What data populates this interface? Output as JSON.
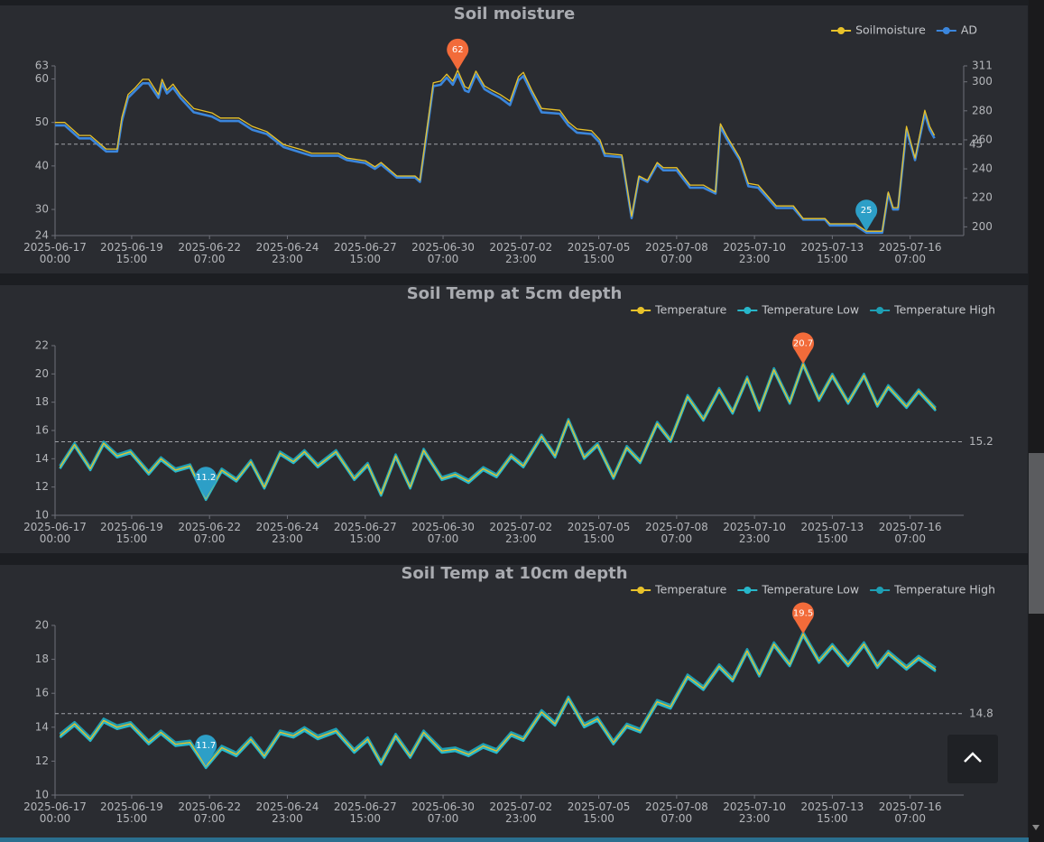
{
  "chart_data": [
    {
      "type": "line",
      "title": "Soil moisture",
      "legend": "top-right",
      "max_color": "#f26b3a",
      "min_color": "#2d9fc7",
      "x": [
        "2025-06-17 00:00",
        "2025-06-17 08:00",
        "2025-06-17 20:00",
        "2025-06-18 05:00",
        "2025-06-18 18:00",
        "2025-06-19 03:00",
        "2025-06-19 07:00",
        "2025-06-19 12:00",
        "2025-06-19 18:00",
        "2025-06-20 00:00",
        "2025-06-20 05:00",
        "2025-06-20 13:00",
        "2025-06-20 16:00",
        "2025-06-20 20:00",
        "2025-06-21 01:00",
        "2025-06-21 07:00",
        "2025-06-21 18:00",
        "2025-06-22 09:00",
        "2025-06-22 16:00",
        "2025-06-23 07:00",
        "2025-06-23 18:00",
        "2025-06-24 06:00",
        "2025-06-24 20:00",
        "2025-06-25 11:00",
        "2025-06-25 19:00",
        "2025-06-26 17:00",
        "2025-06-27 00:00",
        "2025-06-27 15:00",
        "2025-06-27 23:00",
        "2025-06-28 04:00",
        "2025-06-28 17:00",
        "2025-06-29 08:00",
        "2025-06-29 12:00",
        "2025-06-29 17:00",
        "2025-06-29 23:00",
        "2025-06-30 05:00",
        "2025-06-30 10:00",
        "2025-06-30 15:00",
        "2025-06-30 19:00",
        "2025-07-01 01:00",
        "2025-07-01 04:00",
        "2025-07-01 10:00",
        "2025-07-01 17:00",
        "2025-07-01 23:00",
        "2025-07-02 06:00",
        "2025-07-02 14:00",
        "2025-07-02 21:00",
        "2025-07-03 01:00",
        "2025-07-03 08:00",
        "2025-07-03 16:00",
        "2025-07-04 07:00",
        "2025-07-04 14:00",
        "2025-07-04 21:00",
        "2025-07-05 09:00",
        "2025-07-05 16:00",
        "2025-07-05 20:00",
        "2025-07-06 10:00",
        "2025-07-06 18:00",
        "2025-07-07 00:00",
        "2025-07-07 07:00",
        "2025-07-07 15:00",
        "2025-07-07 20:00",
        "2025-07-08 07:00",
        "2025-07-08 18:00",
        "2025-07-09 05:00",
        "2025-07-09 15:00",
        "2025-07-09 19:00",
        "2025-07-10 00:00",
        "2025-07-10 11:00",
        "2025-07-10 18:00",
        "2025-07-11 02:00",
        "2025-07-11 17:00",
        "2025-07-12 07:00",
        "2025-07-12 15:00",
        "2025-07-13 09:00",
        "2025-07-13 13:00",
        "2025-07-14 10:00",
        "2025-07-14 19:00",
        "2025-07-15 08:00",
        "2025-07-15 13:00",
        "2025-07-15 17:00",
        "2025-07-15 21:00",
        "2025-07-16 04:00",
        "2025-07-16 11:00",
        "2025-07-16 19:00",
        "2025-07-16 23:00",
        "2025-07-17 03:00"
      ],
      "series": [
        {
          "name": "Soilmoisture",
          "color": "#e8c22a",
          "values": [
            50,
            50,
            47.0,
            47.0,
            43.9,
            43.9,
            51.2,
            56.4,
            58.0,
            59.9,
            59.9,
            56.4,
            59.9,
            57.4,
            58.8,
            56.4,
            53.2,
            52.2,
            51.0,
            51.0,
            49.1,
            47.9,
            44.9,
            43.7,
            42.9,
            42.9,
            41.8,
            41.2,
            39.8,
            40.8,
            37.7,
            37.7,
            36.7,
            47.0,
            59.1,
            59.5,
            61.1,
            59.5,
            62,
            58.2,
            57.8,
            61.8,
            58.4,
            57.4,
            56.4,
            54.9,
            60.5,
            61.5,
            57.4,
            53.2,
            52.8,
            50.1,
            48.5,
            48.1,
            46.0,
            42.9,
            42.5,
            28.4,
            37.7,
            36.7,
            40.8,
            39.6,
            39.6,
            35.6,
            35.6,
            34.0,
            49.7,
            47.0,
            41.8,
            36.0,
            35.6,
            30.8,
            30.8,
            27.9,
            27.9,
            26.7,
            26.7,
            25,
            25,
            34.0,
            30.4,
            30.4,
            49.1,
            41.8,
            52.8,
            49.1,
            47.0
          ]
        },
        {
          "name": "AD",
          "color": "#3b86dc",
          "axis": "y2",
          "values": [
            270,
            270,
            261,
            261,
            252,
            252,
            273,
            289,
            294,
            299,
            299,
            289,
            299,
            292,
            296,
            289,
            279,
            276,
            273,
            273,
            267,
            264,
            255,
            251,
            249,
            249,
            246,
            244,
            240,
            243,
            234,
            234,
            231,
            261,
            297,
            298,
            303,
            298,
            305,
            294,
            293,
            305,
            295,
            292,
            289,
            284,
            301,
            304,
            292,
            279,
            278,
            270,
            265,
            264,
            258,
            249,
            248,
            206,
            234,
            231,
            243,
            239,
            239,
            227,
            227,
            223,
            269,
            261,
            246,
            228,
            227,
            213,
            213,
            205,
            205,
            201,
            201,
            196,
            196,
            223,
            212,
            212,
            267,
            246,
            278,
            267,
            261
          ]
        }
      ],
      "mark_line": 45,
      "xlim": [
        "2025-06-17 00:00",
        "2025-07-18 03:00"
      ],
      "xticks": [
        "2025-06-17 00:00",
        "2025-06-19 15:00",
        "2025-06-22 07:00",
        "2025-06-24 23:00",
        "2025-06-27 15:00",
        "2025-06-30 07:00",
        "2025-07-02 23:00",
        "2025-07-05 15:00",
        "2025-07-08 07:00",
        "2025-07-10 23:00",
        "2025-07-13 15:00",
        "2025-07-16 07:00"
      ],
      "ylim": [
        24,
        63
      ],
      "yticks": [
        24,
        30,
        40,
        50,
        60,
        63
      ],
      "y2lim": [
        194,
        311
      ],
      "y2ticks": [
        200,
        220,
        240,
        260,
        280,
        300,
        311
      ]
    },
    {
      "type": "line",
      "title": "Soil Temp at 5cm depth",
      "legend": "top-right",
      "max_color": "#f26b3a",
      "min_color": "#2d9fc7",
      "x": [
        "2025-06-17 04:00",
        "2025-06-17 16:00",
        "2025-06-18 05:00",
        "2025-06-18 16:00",
        "2025-06-19 03:00",
        "2025-06-19 14:00",
        "2025-06-20 05:00",
        "2025-06-20 15:00",
        "2025-06-21 03:00",
        "2025-06-21 15:00",
        "2025-06-22 04:00",
        "2025-06-22 17:00",
        "2025-06-23 05:00",
        "2025-06-23 17:00",
        "2025-06-24 04:00",
        "2025-06-24 17:00",
        "2025-06-25 04:00",
        "2025-06-25 13:00",
        "2025-06-26 00:00",
        "2025-06-26 15:00",
        "2025-06-27 06:00",
        "2025-06-27 17:00",
        "2025-06-28 04:00",
        "2025-06-28 16:00",
        "2025-06-29 04:00",
        "2025-06-29 15:00",
        "2025-06-30 06:00",
        "2025-06-30 17:00",
        "2025-07-01 04:00",
        "2025-07-01 16:00",
        "2025-07-02 03:00",
        "2025-07-02 15:00",
        "2025-07-03 01:00",
        "2025-07-03 16:00",
        "2025-07-04 03:00",
        "2025-07-04 14:00",
        "2025-07-05 03:00",
        "2025-07-05 14:00",
        "2025-07-06 03:00",
        "2025-07-06 14:00",
        "2025-07-07 01:00",
        "2025-07-07 15:00",
        "2025-07-08 02:00",
        "2025-07-08 16:00",
        "2025-07-09 05:00",
        "2025-07-09 18:00",
        "2025-07-10 05:00",
        "2025-07-10 17:00",
        "2025-07-11 03:00",
        "2025-07-11 15:00",
        "2025-07-12 04:00",
        "2025-07-12 15:00",
        "2025-07-13 04:00",
        "2025-07-13 15:00",
        "2025-07-14 04:00",
        "2025-07-14 17:00",
        "2025-07-15 04:00",
        "2025-07-15 13:00",
        "2025-07-16 04:00",
        "2025-07-16 14:00",
        "2025-07-17 04:00"
      ],
      "series": [
        {
          "name": "Temperature",
          "color": "#e8c22a",
          "values": [
            13.4,
            15.0,
            13.3,
            15.1,
            14.2,
            14.5,
            13.0,
            14.0,
            13.2,
            13.5,
            11.2,
            13.2,
            12.5,
            13.8,
            12.0,
            14.4,
            13.8,
            14.5,
            13.5,
            14.5,
            12.6,
            13.6,
            11.5,
            14.2,
            12.0,
            14.6,
            12.6,
            12.9,
            12.4,
            13.3,
            12.8,
            14.2,
            13.5,
            15.6,
            14.2,
            16.7,
            14.1,
            15.0,
            12.7,
            14.8,
            13.8,
            16.5,
            15.3,
            18.4,
            16.8,
            18.9,
            17.3,
            19.7,
            17.5,
            20.3,
            18.0,
            20.7,
            18.2,
            19.9,
            18.0,
            19.9,
            17.8,
            19.1,
            17.7,
            18.8,
            17.5
          ]
        },
        {
          "name": "Temperature Low",
          "color": "#27b7ca",
          "values": [
            13.3,
            14.9,
            13.2,
            15.0,
            14.1,
            14.4,
            12.9,
            13.9,
            13.1,
            13.4,
            11.1,
            13.1,
            12.4,
            13.7,
            11.9,
            14.3,
            13.7,
            14.4,
            13.4,
            14.4,
            12.5,
            13.5,
            11.4,
            14.1,
            11.9,
            14.5,
            12.5,
            12.8,
            12.3,
            13.2,
            12.7,
            14.1,
            13.4,
            15.5,
            14.1,
            16.6,
            14.0,
            14.9,
            12.6,
            14.7,
            13.7,
            16.4,
            15.2,
            18.3,
            16.7,
            18.8,
            17.2,
            19.6,
            17.4,
            20.2,
            17.9,
            20.6,
            18.1,
            19.8,
            17.9,
            19.8,
            17.7,
            19.0,
            17.6,
            18.7,
            17.4
          ]
        },
        {
          "name": "Temperature High",
          "color": "#1e9fb4",
          "values": [
            13.5,
            15.1,
            13.4,
            15.2,
            14.3,
            14.6,
            13.1,
            14.1,
            13.3,
            13.6,
            11.3,
            13.3,
            12.6,
            13.9,
            12.1,
            14.5,
            13.9,
            14.6,
            13.6,
            14.6,
            12.7,
            13.7,
            11.6,
            14.3,
            12.1,
            14.7,
            12.7,
            13.0,
            12.5,
            13.4,
            12.9,
            14.3,
            13.6,
            15.7,
            14.3,
            16.8,
            14.2,
            15.1,
            12.8,
            14.9,
            13.9,
            16.6,
            15.4,
            18.5,
            16.9,
            19.0,
            17.4,
            19.8,
            17.6,
            20.4,
            18.1,
            20.8,
            18.3,
            20.0,
            18.1,
            20.0,
            17.9,
            19.2,
            17.8,
            18.9,
            17.6
          ]
        }
      ],
      "mark_line": 15.2,
      "xlim": [
        "2025-06-17 00:00",
        "2025-07-18 03:00"
      ],
      "xticks": [
        "2025-06-17 00:00",
        "2025-06-19 15:00",
        "2025-06-22 07:00",
        "2025-06-24 23:00",
        "2025-06-27 15:00",
        "2025-06-30 07:00",
        "2025-07-02 23:00",
        "2025-07-05 15:00",
        "2025-07-08 07:00",
        "2025-07-10 23:00",
        "2025-07-13 15:00",
        "2025-07-16 07:00"
      ],
      "ylim": [
        10,
        22
      ],
      "yticks": [
        10,
        12,
        14,
        16,
        18,
        20,
        22
      ]
    },
    {
      "type": "line",
      "title": "Soil Temp at 10cm depth",
      "legend": "top-right",
      "max_color": "#f26b3a",
      "min_color": "#2d9fc7",
      "x": [
        "2025-06-17 04:00",
        "2025-06-17 16:00",
        "2025-06-18 05:00",
        "2025-06-18 16:00",
        "2025-06-19 03:00",
        "2025-06-19 14:00",
        "2025-06-20 05:00",
        "2025-06-20 15:00",
        "2025-06-21 03:00",
        "2025-06-21 15:00",
        "2025-06-22 04:00",
        "2025-06-22 17:00",
        "2025-06-23 05:00",
        "2025-06-23 17:00",
        "2025-06-24 04:00",
        "2025-06-24 17:00",
        "2025-06-25 04:00",
        "2025-06-25 13:00",
        "2025-06-26 00:00",
        "2025-06-26 15:00",
        "2025-06-27 06:00",
        "2025-06-27 17:00",
        "2025-06-28 04:00",
        "2025-06-28 16:00",
        "2025-06-29 04:00",
        "2025-06-29 15:00",
        "2025-06-30 06:00",
        "2025-06-30 17:00",
        "2025-07-01 04:00",
        "2025-07-01 16:00",
        "2025-07-02 03:00",
        "2025-07-02 15:00",
        "2025-07-03 01:00",
        "2025-07-03 16:00",
        "2025-07-04 03:00",
        "2025-07-04 14:00",
        "2025-07-05 03:00",
        "2025-07-05 14:00",
        "2025-07-06 03:00",
        "2025-07-06 14:00",
        "2025-07-07 01:00",
        "2025-07-07 15:00",
        "2025-07-08 02:00",
        "2025-07-08 16:00",
        "2025-07-09 05:00",
        "2025-07-09 18:00",
        "2025-07-10 05:00",
        "2025-07-10 17:00",
        "2025-07-11 03:00",
        "2025-07-11 15:00",
        "2025-07-12 04:00",
        "2025-07-12 15:00",
        "2025-07-13 04:00",
        "2025-07-13 15:00",
        "2025-07-14 04:00",
        "2025-07-14 17:00",
        "2025-07-15 04:00",
        "2025-07-15 13:00",
        "2025-07-16 04:00",
        "2025-07-16 14:00",
        "2025-07-17 04:00"
      ],
      "series": [
        {
          "name": "Temperature",
          "color": "#e8c22a",
          "values": [
            13.5,
            14.2,
            13.3,
            14.4,
            14.0,
            14.2,
            13.1,
            13.7,
            13.0,
            13.1,
            11.7,
            12.8,
            12.4,
            13.3,
            12.3,
            13.7,
            13.5,
            13.9,
            13.4,
            13.8,
            12.6,
            13.3,
            11.9,
            13.5,
            12.3,
            13.7,
            12.6,
            12.7,
            12.4,
            12.9,
            12.6,
            13.6,
            13.3,
            14.9,
            14.2,
            15.7,
            14.1,
            14.5,
            13.1,
            14.1,
            13.8,
            15.5,
            15.2,
            17.0,
            16.3,
            17.6,
            16.8,
            18.5,
            17.1,
            18.9,
            17.7,
            19.5,
            17.9,
            18.8,
            17.7,
            18.9,
            17.6,
            18.4,
            17.5,
            18.1,
            17.4
          ]
        },
        {
          "name": "Temperature Low",
          "color": "#27b7ca",
          "values": [
            13.4,
            14.1,
            13.2,
            14.3,
            13.9,
            14.1,
            13.0,
            13.6,
            12.9,
            13.0,
            11.6,
            12.7,
            12.3,
            13.2,
            12.2,
            13.6,
            13.4,
            13.8,
            13.3,
            13.7,
            12.5,
            13.2,
            11.8,
            13.4,
            12.2,
            13.6,
            12.5,
            12.6,
            12.3,
            12.8,
            12.5,
            13.5,
            13.2,
            14.8,
            14.1,
            15.6,
            14.0,
            14.4,
            13.0,
            14.0,
            13.7,
            15.4,
            15.1,
            16.9,
            16.2,
            17.5,
            16.7,
            18.4,
            17.0,
            18.8,
            17.6,
            19.4,
            17.8,
            18.7,
            17.6,
            18.8,
            17.5,
            18.3,
            17.4,
            18.0,
            17.3
          ]
        },
        {
          "name": "Temperature High",
          "color": "#1e9fb4",
          "values": [
            13.6,
            14.3,
            13.4,
            14.5,
            14.1,
            14.3,
            13.2,
            13.8,
            13.1,
            13.2,
            11.8,
            12.9,
            12.5,
            13.4,
            12.4,
            13.8,
            13.6,
            14.0,
            13.5,
            13.9,
            12.7,
            13.4,
            12.0,
            13.6,
            12.4,
            13.8,
            12.7,
            12.8,
            12.5,
            13.0,
            12.7,
            13.7,
            13.4,
            15.0,
            14.3,
            15.8,
            14.2,
            14.6,
            13.2,
            14.2,
            13.9,
            15.6,
            15.3,
            17.1,
            16.4,
            17.7,
            16.9,
            18.6,
            17.2,
            19.0,
            17.8,
            19.6,
            18.0,
            18.9,
            17.8,
            19.0,
            17.7,
            18.5,
            17.6,
            18.2,
            17.5
          ]
        }
      ],
      "mark_line": 14.8,
      "xlim": [
        "2025-06-17 00:00",
        "2025-07-18 03:00"
      ],
      "xticks": [
        "2025-06-17 00:00",
        "2025-06-19 15:00",
        "2025-06-22 07:00",
        "2025-06-24 23:00",
        "2025-06-27 15:00",
        "2025-06-30 07:00",
        "2025-07-02 23:00",
        "2025-07-05 15:00",
        "2025-07-08 07:00",
        "2025-07-10 23:00",
        "2025-07-13 15:00",
        "2025-07-16 07:00"
      ],
      "ylim": [
        10,
        20
      ],
      "yticks": [
        10,
        12,
        14,
        16,
        18,
        20
      ]
    }
  ]
}
